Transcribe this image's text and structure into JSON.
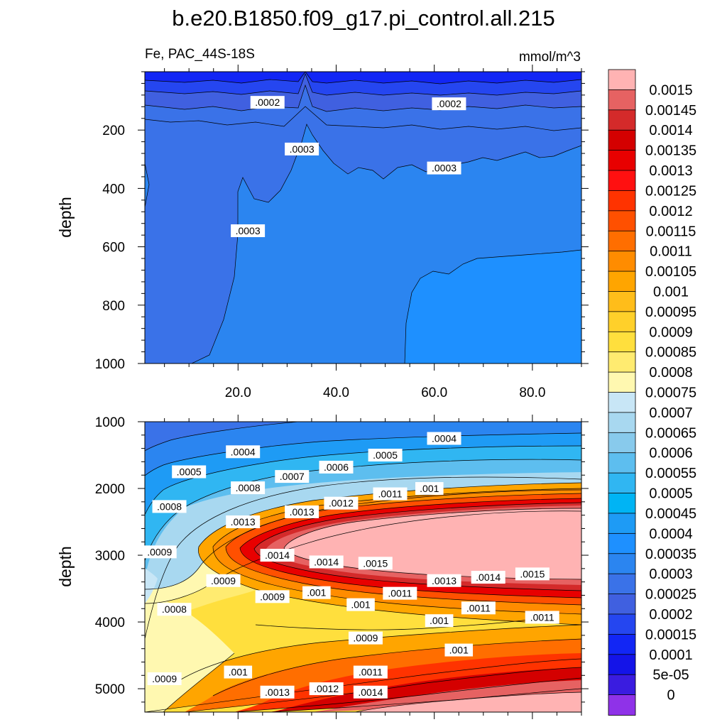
{
  "figure": {
    "title": "b.e20.B1850.f09_g17.pi_control.all.215",
    "left_string": "Fe, PAC_44S-18S",
    "right_string": "mmol/m^3"
  },
  "chart_data": [
    {
      "type": "contour",
      "panel": "upper",
      "variable": "Fe",
      "units": "mmol/m^3",
      "xlabel": "",
      "ylabel": "depth",
      "xlim": [
        1,
        90
      ],
      "ylim": [
        1000,
        0
      ],
      "x_ticks": [
        20,
        40,
        60,
        80
      ],
      "x_tick_labels": [
        "20.0",
        "40.0",
        "60.0",
        "80.0"
      ],
      "y_ticks": [
        200,
        400,
        600,
        800,
        1000
      ],
      "y_tick_labels": [
        "200",
        "400",
        "600",
        "800",
        "1000"
      ],
      "contour_labels": [
        {
          "text": ".0002",
          "x": 26,
          "y": 105
        },
        {
          "text": ".0002",
          "x": 63,
          "y": 110
        },
        {
          "text": ".0003",
          "x": 33,
          "y": 265
        },
        {
          "text": ".0003",
          "x": 62,
          "y": 330
        },
        {
          "text": ".0003",
          "x": 22,
          "y": 545
        }
      ]
    },
    {
      "type": "contour",
      "panel": "lower",
      "variable": "Fe",
      "units": "mmol/m^3",
      "xlabel": "",
      "ylabel": "depth",
      "xlim": [
        1,
        90
      ],
      "ylim": [
        5350,
        1000
      ],
      "y_ticks": [
        1000,
        2000,
        3000,
        4000,
        5000
      ],
      "y_tick_labels": [
        "1000",
        "2000",
        "3000",
        "4000",
        "5000"
      ],
      "contour_labels": [
        {
          "text": ".0004",
          "x": 62,
          "y": 1250
        },
        {
          "text": ".0004",
          "x": 21,
          "y": 1450
        },
        {
          "text": ".0005",
          "x": 50,
          "y": 1500
        },
        {
          "text": ".0005",
          "x": 10,
          "y": 1750
        },
        {
          "text": ".0006",
          "x": 40,
          "y": 1680
        },
        {
          "text": ".0007",
          "x": 31,
          "y": 1820
        },
        {
          "text": ".0008",
          "x": 22,
          "y": 1990
        },
        {
          "text": ".0008",
          "x": 6,
          "y": 2270
        },
        {
          "text": ".0009",
          "x": 4,
          "y": 2950
        },
        {
          "text": ".0013",
          "x": 21,
          "y": 2500
        },
        {
          "text": ".0013",
          "x": 33,
          "y": 2350
        },
        {
          "text": ".0012",
          "x": 41,
          "y": 2220
        },
        {
          "text": ".0011",
          "x": 51,
          "y": 2080
        },
        {
          "text": ".001",
          "x": 59,
          "y": 2000
        },
        {
          "text": ".0014",
          "x": 28,
          "y": 3000
        },
        {
          "text": ".0014",
          "x": 38,
          "y": 3100
        },
        {
          "text": ".0015",
          "x": 48,
          "y": 3120
        },
        {
          "text": ".0013",
          "x": 62,
          "y": 3380
        },
        {
          "text": ".0014",
          "x": 71,
          "y": 3330
        },
        {
          "text": ".0015",
          "x": 80,
          "y": 3280
        },
        {
          "text": ".0009",
          "x": 17,
          "y": 3380
        },
        {
          "text": ".0009",
          "x": 27,
          "y": 3620
        },
        {
          "text": ".001",
          "x": 36,
          "y": 3560
        },
        {
          "text": ".001",
          "x": 45,
          "y": 3740
        },
        {
          "text": ".0011",
          "x": 53,
          "y": 3570
        },
        {
          "text": ".0011",
          "x": 69,
          "y": 3790
        },
        {
          "text": ".0011",
          "x": 82,
          "y": 3930
        },
        {
          "text": ".001",
          "x": 61,
          "y": 3980
        },
        {
          "text": ".0008",
          "x": 7,
          "y": 3810
        },
        {
          "text": ".0009",
          "x": 46,
          "y": 4240
        },
        {
          "text": ".001",
          "x": 65,
          "y": 4420
        },
        {
          "text": ".0009",
          "x": 5,
          "y": 4850
        },
        {
          "text": ".001",
          "x": 20,
          "y": 4750
        },
        {
          "text": ".0011",
          "x": 47,
          "y": 4750
        },
        {
          "text": ".0012",
          "x": 38,
          "y": 5000
        },
        {
          "text": ".0013",
          "x": 28,
          "y": 5050
        },
        {
          "text": ".0014",
          "x": 47,
          "y": 5050
        }
      ]
    }
  ],
  "colorbar": {
    "labels": [
      "0.0015",
      "0.00145",
      "0.0014",
      "0.00135",
      "0.0013",
      "0.00125",
      "0.0012",
      "0.00115",
      "0.0011",
      "0.00105",
      "0.001",
      "0.00095",
      "0.0009",
      "0.00085",
      "0.0008",
      "0.00075",
      "0.0007",
      "0.00065",
      "0.0006",
      "0.00055",
      "0.0005",
      "0.00045",
      "0.0004",
      "0.00035",
      "0.0003",
      "0.00025",
      "0.0002",
      "0.00015",
      "0.0001",
      "5e-05",
      "0"
    ],
    "colors": [
      "#FFB3B3",
      "#E66262",
      "#D42A2A",
      "#D40000",
      "#E80000",
      "#FF1010",
      "#FF3300",
      "#FF5000",
      "#FF6E00",
      "#FF8C00",
      "#FFA500",
      "#FFBD1A",
      "#FFD02A",
      "#FFDF3D",
      "#FFEB70",
      "#FFF8B0",
      "#C8E6F6",
      "#A8D8F0",
      "#88CAEC",
      "#5DBEEF",
      "#30B6F2",
      "#00B4F4",
      "#1E9BF5",
      "#1E90FF",
      "#2B85F0",
      "#3A72E8",
      "#4060E0",
      "#2546F0",
      "#1226F5",
      "#1414E8",
      "#3A1CE0",
      "#8F32E8"
    ],
    "below_color": "#8F32E8"
  }
}
